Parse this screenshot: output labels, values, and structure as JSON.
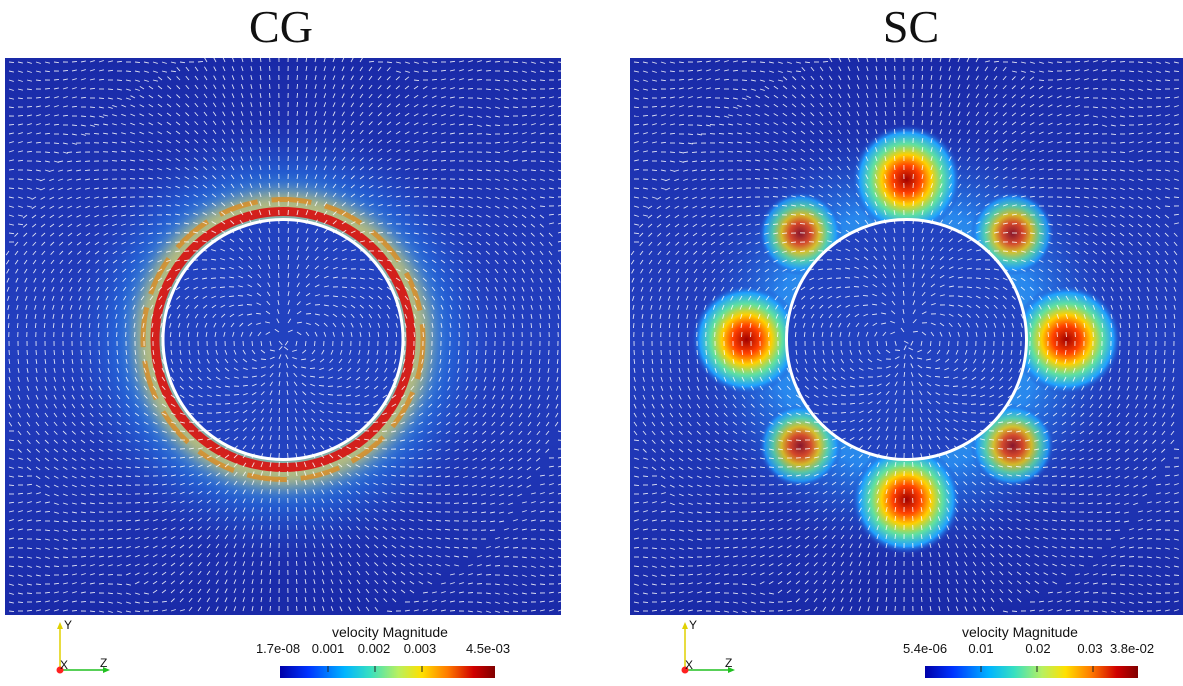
{
  "panels": [
    {
      "id": "cg",
      "title": "CG",
      "legend": {
        "title": "velocity Magnitude",
        "ticks": [
          "1.7e-08",
          "0.001",
          "0.002",
          "0.003",
          "4.5e-03"
        ],
        "range": [
          1.7e-08,
          0.0045
        ]
      },
      "axes": {
        "x": "X",
        "y": "Y",
        "z": "Z"
      },
      "pattern": "ring"
    },
    {
      "id": "sc",
      "title": "SC",
      "legend": {
        "title": "velocity Magnitude",
        "ticks": [
          "5.4e-06",
          "0.01",
          "0.02",
          "0.03",
          "3.8e-02"
        ],
        "range": [
          5.4e-06,
          0.038
        ]
      },
      "axes": {
        "x": "X",
        "y": "Y",
        "z": "Z"
      },
      "pattern": "lobes"
    }
  ],
  "colors": {
    "background_field": "#1b2a9c",
    "colormap": [
      "#0000a8",
      "#0033ff",
      "#00b4ff",
      "#38e0c0",
      "#b8f060",
      "#ffe000",
      "#ff7a00",
      "#d00000",
      "#800000"
    ],
    "glyph": "#ffffff",
    "axis_y": "#e0d000",
    "axis_z": "#20c020",
    "axis_origin": "#ff2020"
  }
}
